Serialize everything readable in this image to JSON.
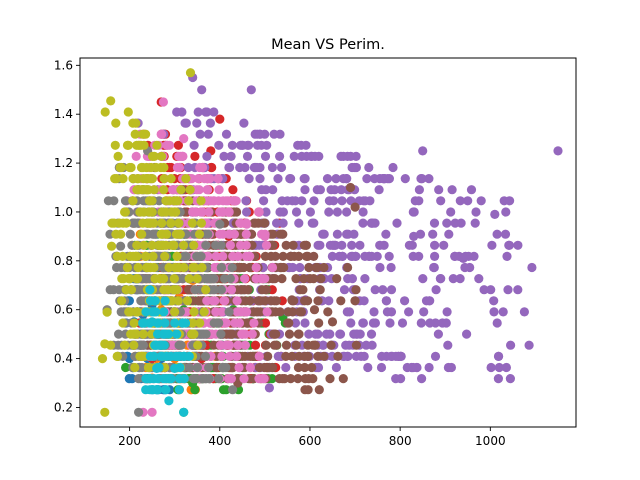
{
  "chart_data": {
    "type": "scatter",
    "title": "Mean VS Perim.",
    "xlabel": "",
    "ylabel": "",
    "xlim": [
      90,
      1190
    ],
    "ylim": [
      0.12,
      1.63
    ],
    "xticks": [
      200,
      400,
      600,
      800,
      1000
    ],
    "yticks": [
      0.2,
      0.4,
      0.6,
      0.8,
      1.0,
      1.2,
      1.4,
      1.6
    ],
    "xtick_labels": [
      "200",
      "400",
      "600",
      "800",
      "1000"
    ],
    "ytick_labels": [
      "0.2",
      "0.4",
      "0.6",
      "0.8",
      "1.0",
      "1.2",
      "1.4",
      "1.6"
    ],
    "grid": false,
    "legend": "none",
    "series": [
      {
        "color": "#1f77b4",
        "x_range": [
          180,
          310
        ],
        "y_range": [
          0.18,
          0.85
        ],
        "n": 90,
        "points": [
          [
            200,
            0.4
          ],
          [
            240,
            0.4
          ],
          [
            270,
            0.4
          ],
          [
            210,
            0.55
          ],
          [
            230,
            0.58
          ],
          [
            250,
            0.62
          ]
        ]
      },
      {
        "color": "#ff7f0e",
        "x_range": [
          200,
          420
        ],
        "y_range": [
          0.18,
          1.0
        ],
        "n": 140,
        "points": [
          [
            260,
            0.4
          ],
          [
            300,
            0.4
          ],
          [
            310,
            0.65
          ],
          [
            250,
            0.32
          ],
          [
            340,
            0.72
          ],
          [
            270,
            0.6
          ]
        ]
      },
      {
        "color": "#2ca02c",
        "x_range": [
          190,
          560
        ],
        "y_range": [
          0.18,
          1.05
        ],
        "n": 260,
        "points": [
          [
            320,
            0.18
          ],
          [
            320,
            0.6
          ],
          [
            430,
            0.6
          ],
          [
            470,
            0.55
          ],
          [
            540,
            0.57
          ],
          [
            340,
            0.3
          ]
        ]
      },
      {
        "color": "#d62728",
        "x_range": [
          220,
          560
        ],
        "y_range": [
          0.18,
          1.45
        ],
        "n": 260,
        "points": [
          [
            270,
            1.45
          ],
          [
            380,
            1.25
          ],
          [
            400,
            1.38
          ],
          [
            250,
            0.4
          ],
          [
            360,
            0.4
          ],
          [
            420,
            0.9
          ]
        ]
      },
      {
        "color": "#9467bd",
        "x_range": [
          180,
          1150
        ],
        "y_range": [
          0.18,
          1.55
        ],
        "n": 520,
        "points": [
          [
            340,
            1.55
          ],
          [
            360,
            1.5
          ],
          [
            470,
            1.5
          ],
          [
            1150,
            1.25
          ],
          [
            850,
            1.25
          ],
          [
            940,
            0.81
          ],
          [
            1010,
            0.99
          ],
          [
            830,
            0.9
          ],
          [
            510,
            0.28
          ],
          [
            590,
            0.64
          ]
        ]
      },
      {
        "color": "#8c564b",
        "x_range": [
          230,
          720
        ],
        "y_range": [
          0.18,
          1.2
        ],
        "n": 380,
        "points": [
          [
            690,
            1.1
          ],
          [
            700,
            1.02
          ],
          [
            610,
            0.6
          ],
          [
            650,
            0.55
          ],
          [
            560,
            0.64
          ],
          [
            440,
            0.3
          ]
        ]
      },
      {
        "color": "#e377c2",
        "x_range": [
          190,
          540
        ],
        "y_range": [
          0.18,
          1.45
        ],
        "n": 330,
        "points": [
          [
            275,
            1.45
          ],
          [
            320,
            1.3
          ],
          [
            460,
            0.95
          ],
          [
            500,
            0.9
          ],
          [
            230,
            0.18
          ],
          [
            250,
            0.18
          ]
        ]
      },
      {
        "color": "#7f7f7f",
        "x_range": [
          150,
          440
        ],
        "y_range": [
          0.18,
          1.25
        ],
        "n": 380,
        "points": [
          [
            240,
            1.25
          ],
          [
            180,
            0.86
          ],
          [
            150,
            0.6
          ],
          [
            220,
            0.18
          ],
          [
            400,
            0.95
          ]
        ]
      },
      {
        "color": "#bcbd22",
        "x_range": [
          140,
          380
        ],
        "y_range": [
          0.18,
          1.57
        ],
        "n": 240,
        "points": [
          [
            335,
            1.57
          ],
          [
            150,
            0.59
          ],
          [
            145,
            0.46
          ],
          [
            140,
            0.4
          ],
          [
            145,
            0.18
          ],
          [
            160,
            0.86
          ]
        ]
      },
      {
        "color": "#17becf",
        "x_range": [
          220,
          340
        ],
        "y_range": [
          0.18,
          0.75
        ],
        "n": 70,
        "points": [
          [
            260,
            0.36
          ],
          [
            300,
            0.36
          ],
          [
            320,
            0.18
          ],
          [
            250,
            0.55
          ]
        ]
      }
    ]
  }
}
